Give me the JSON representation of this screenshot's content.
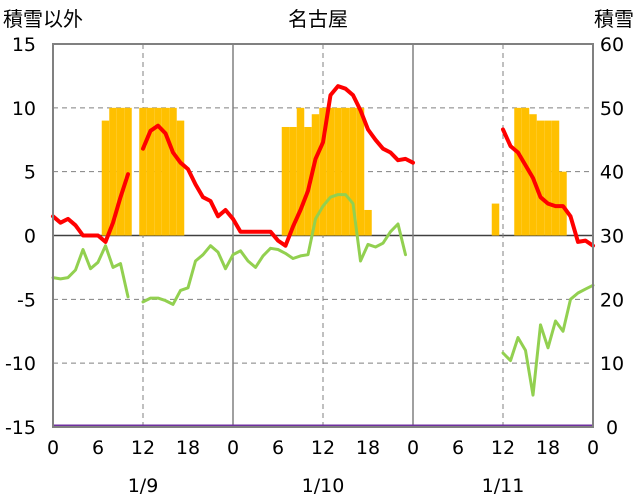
{
  "chart_data": {
    "type": "combo",
    "title": "名古屋",
    "left_axis_label": "積雪以外",
    "right_axis_label": "積雪",
    "left_ylim": [
      -15,
      15
    ],
    "left_ticks": [
      "15",
      "10",
      "5",
      "0",
      "-5",
      "-10",
      "-15"
    ],
    "right_ylim": [
      0,
      60
    ],
    "right_ticks": [
      "60",
      "50",
      "40",
      "30",
      "20",
      "10",
      "0"
    ],
    "x_tick_labels": [
      "0",
      "6",
      "12",
      "18",
      "0",
      "6",
      "12",
      "18",
      "0",
      "6",
      "12",
      "18",
      "0"
    ],
    "date_labels": [
      "1/9",
      "1/10",
      "1/11"
    ],
    "x_range_hours": [
      0,
      72
    ],
    "grid": true,
    "colors": {
      "snow_depth": "#ffc000",
      "temperature": "#ff0000",
      "humidity_like": "#92d050",
      "precip": "#7030a0"
    },
    "snow_depth_bars": [
      {
        "x": 7,
        "v": 48
      },
      {
        "x": 8,
        "v": 50
      },
      {
        "x": 9,
        "v": 50
      },
      {
        "x": 10,
        "v": 50
      },
      {
        "x": 12,
        "v": 50
      },
      {
        "x": 13,
        "v": 50
      },
      {
        "x": 14,
        "v": 50
      },
      {
        "x": 15,
        "v": 50
      },
      {
        "x": 16,
        "v": 50
      },
      {
        "x": 17,
        "v": 48
      },
      {
        "x": 31,
        "v": 47
      },
      {
        "x": 32,
        "v": 47
      },
      {
        "x": 33,
        "v": 50
      },
      {
        "x": 34,
        "v": 47
      },
      {
        "x": 35,
        "v": 49
      },
      {
        "x": 36,
        "v": 50
      },
      {
        "x": 37,
        "v": 50
      },
      {
        "x": 38,
        "v": 50
      },
      {
        "x": 39,
        "v": 50
      },
      {
        "x": 40,
        "v": 50
      },
      {
        "x": 41,
        "v": 50
      },
      {
        "x": 42,
        "v": 34
      },
      {
        "x": 59,
        "v": 35
      },
      {
        "x": 62,
        "v": 50
      },
      {
        "x": 63,
        "v": 50
      },
      {
        "x": 64,
        "v": 49
      },
      {
        "x": 65,
        "v": 48
      },
      {
        "x": 66,
        "v": 48
      },
      {
        "x": 67,
        "v": 48
      },
      {
        "x": 68,
        "v": 40
      }
    ],
    "series": [
      {
        "key": "temperature",
        "values": [
          1.5,
          1.0,
          1.3,
          0.8,
          0.0,
          0.0,
          0.0,
          -0.5,
          1.0,
          3.0,
          4.8,
          null,
          6.8,
          8.2,
          8.6,
          8.0,
          6.5,
          5.7,
          5.2,
          4.0,
          3.0,
          2.7,
          1.5,
          2.0,
          1.3,
          0.3,
          0.3,
          0.3,
          0.3,
          0.3,
          -0.4,
          -0.8,
          0.7,
          2.0,
          3.5,
          6.0,
          7.3,
          11.0,
          11.7,
          11.5,
          11.0,
          9.8,
          8.3,
          7.5,
          6.8,
          6.5,
          5.9,
          6.0,
          5.7,
          null,
          null,
          null,
          null,
          null,
          null,
          null,
          null,
          null,
          null,
          null,
          8.3,
          7.0,
          6.5,
          5.5,
          4.5,
          3.0,
          2.5,
          2.3,
          2.3,
          1.5,
          -0.5,
          -0.4,
          -0.8
        ]
      },
      {
        "key": "humidity_like",
        "values": [
          -3.3,
          -3.4,
          -3.3,
          -2.7,
          -1.1,
          -2.6,
          -2.1,
          -0.8,
          -2.5,
          -2.2,
          -4.8,
          null,
          -5.2,
          -4.9,
          -4.9,
          -5.1,
          -5.4,
          -4.3,
          -4.1,
          -2.0,
          -1.5,
          -0.8,
          -1.3,
          -2.6,
          -1.5,
          -1.2,
          -2.0,
          -2.5,
          -1.6,
          -1.0,
          -1.1,
          -1.4,
          -1.8,
          -1.6,
          -1.5,
          1.3,
          2.3,
          3.0,
          3.2,
          3.2,
          2.5,
          -2.0,
          -0.7,
          -0.9,
          -0.6,
          0.3,
          0.9,
          -1.5,
          null,
          null,
          null,
          null,
          null,
          null,
          null,
          null,
          null,
          null,
          null,
          null,
          -9.2,
          -9.8,
          -8.0,
          -9.0,
          -12.5,
          -7.0,
          -8.8,
          -6.7,
          -7.5,
          -5.0,
          -4.5,
          -4.2,
          -3.9
        ]
      },
      {
        "key": "precip",
        "constant": -15
      }
    ]
  }
}
